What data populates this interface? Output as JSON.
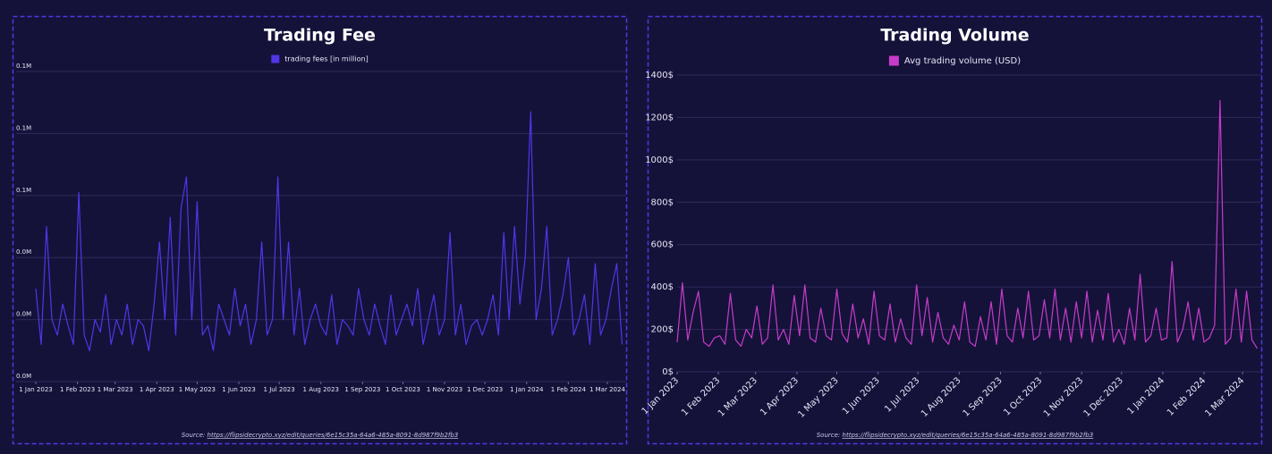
{
  "chart_data": [
    {
      "type": "line",
      "title": "Trading Fee",
      "x": [
        "2023-01-01",
        "2023-01-05",
        "2023-01-09",
        "2023-01-13",
        "2023-01-17",
        "2023-01-21",
        "2023-01-25",
        "2023-01-29",
        "2023-02-02",
        "2023-02-06",
        "2023-02-10",
        "2023-02-14",
        "2023-02-18",
        "2023-02-22",
        "2023-02-26",
        "2023-03-02",
        "2023-03-06",
        "2023-03-10",
        "2023-03-14",
        "2023-03-18",
        "2023-03-22",
        "2023-03-26",
        "2023-03-30",
        "2023-04-03",
        "2023-04-07",
        "2023-04-11",
        "2023-04-15",
        "2023-04-19",
        "2023-04-23",
        "2023-04-27",
        "2023-05-01",
        "2023-05-05",
        "2023-05-09",
        "2023-05-13",
        "2023-05-17",
        "2023-05-21",
        "2023-05-25",
        "2023-05-29",
        "2023-06-02",
        "2023-06-06",
        "2023-06-10",
        "2023-06-14",
        "2023-06-18",
        "2023-06-22",
        "2023-06-26",
        "2023-06-30",
        "2023-07-04",
        "2023-07-08",
        "2023-07-12",
        "2023-07-16",
        "2023-07-20",
        "2023-07-24",
        "2023-07-28",
        "2023-08-01",
        "2023-08-05",
        "2023-08-09",
        "2023-08-13",
        "2023-08-17",
        "2023-08-21",
        "2023-08-25",
        "2023-08-29",
        "2023-09-02",
        "2023-09-06",
        "2023-09-10",
        "2023-09-14",
        "2023-09-18",
        "2023-09-22",
        "2023-09-26",
        "2023-09-30",
        "2023-10-04",
        "2023-10-08",
        "2023-10-12",
        "2023-10-16",
        "2023-10-20",
        "2023-10-24",
        "2023-10-28",
        "2023-11-01",
        "2023-11-05",
        "2023-11-09",
        "2023-11-13",
        "2023-11-17",
        "2023-11-21",
        "2023-11-25",
        "2023-11-29",
        "2023-12-03",
        "2023-12-07",
        "2023-12-11",
        "2023-12-15",
        "2023-12-19",
        "2023-12-23",
        "2023-12-27",
        "2023-12-31",
        "2024-01-04",
        "2024-01-08",
        "2024-01-12",
        "2024-01-16",
        "2024-01-20",
        "2024-01-24",
        "2024-01-28",
        "2024-02-01",
        "2024-02-05",
        "2024-02-09",
        "2024-02-13",
        "2024-02-17",
        "2024-02-21",
        "2024-02-25",
        "2024-02-29",
        "2024-03-04",
        "2024-03-08",
        "2024-03-12"
      ],
      "series": [
        {
          "name": "trading fees [in million]",
          "color": "#5036e6",
          "values": [
            0.03,
            0.012,
            0.05,
            0.02,
            0.015,
            0.025,
            0.018,
            0.012,
            0.061,
            0.015,
            0.01,
            0.02,
            0.016,
            0.028,
            0.012,
            0.02,
            0.015,
            0.025,
            0.012,
            0.02,
            0.018,
            0.01,
            0.025,
            0.045,
            0.02,
            0.053,
            0.015,
            0.056,
            0.066,
            0.02,
            0.058,
            0.015,
            0.018,
            0.01,
            0.025,
            0.02,
            0.015,
            0.03,
            0.018,
            0.025,
            0.012,
            0.02,
            0.045,
            0.015,
            0.02,
            0.066,
            0.02,
            0.045,
            0.015,
            0.03,
            0.012,
            0.02,
            0.025,
            0.018,
            0.015,
            0.028,
            0.012,
            0.02,
            0.018,
            0.015,
            0.03,
            0.02,
            0.015,
            0.025,
            0.018,
            0.012,
            0.028,
            0.015,
            0.02,
            0.025,
            0.018,
            0.03,
            0.012,
            0.02,
            0.028,
            0.015,
            0.02,
            0.048,
            0.015,
            0.025,
            0.012,
            0.018,
            0.02,
            0.015,
            0.02,
            0.028,
            0.015,
            0.048,
            0.02,
            0.05,
            0.025,
            0.04,
            0.087,
            0.02,
            0.03,
            0.05,
            0.015,
            0.02,
            0.028,
            0.04,
            0.015,
            0.02,
            0.028,
            0.012,
            0.038,
            0.015,
            0.02,
            0.03,
            0.038,
            0.012
          ]
        }
      ],
      "xlim": [
        "2023-01-01",
        "2024-03-15"
      ],
      "xticks": [
        {
          "value": "2023-01-01",
          "label": "1 Jan 2023"
        },
        {
          "value": "2023-02-01",
          "label": "1 Feb 2023"
        },
        {
          "value": "2023-03-01",
          "label": "1 Mar 2023"
        },
        {
          "value": "2023-04-01",
          "label": "1 Apr 2023"
        },
        {
          "value": "2023-05-01",
          "label": "1 May 2023"
        },
        {
          "value": "2023-06-01",
          "label": "1 Jun 2023"
        },
        {
          "value": "2023-07-01",
          "label": "1 Jul 2023"
        },
        {
          "value": "2023-08-01",
          "label": "1 Aug 2023"
        },
        {
          "value": "2023-09-01",
          "label": "1 Sep 2023"
        },
        {
          "value": "2023-10-01",
          "label": "1 Oct 2023"
        },
        {
          "value": "2023-11-01",
          "label": "1 Nov 2023"
        },
        {
          "value": "2023-12-01",
          "label": "1 Dec 2023"
        },
        {
          "value": "2024-01-01",
          "label": "1 Jan 2024"
        },
        {
          "value": "2024-02-01",
          "label": "1 Feb 2024"
        },
        {
          "value": "2024-03-01",
          "label": "1 Mar 2024"
        }
      ],
      "ylim": [
        0,
        0.1
      ],
      "yticks": [
        {
          "value": 0,
          "label": "0.0M"
        },
        {
          "value": 0.02,
          "label": "0.0M"
        },
        {
          "value": 0.04,
          "label": "0.0M"
        },
        {
          "value": 0.06,
          "label": "0.1M"
        },
        {
          "value": 0.08,
          "label": "0.1M"
        },
        {
          "value": 0.1,
          "label": "0.1M"
        }
      ],
      "grid": true,
      "xtick_rotation": 0,
      "source": {
        "label": "Source:",
        "url": "https://flipsidecrypto.xyz/edit/queries/6e15c35a-64a6-485a-8091-8d987f9b2fb3"
      }
    },
    {
      "type": "line",
      "title": "Trading Volume",
      "x": [
        "2023-01-01",
        "2023-01-05",
        "2023-01-09",
        "2023-01-13",
        "2023-01-17",
        "2023-01-21",
        "2023-01-25",
        "2023-01-29",
        "2023-02-02",
        "2023-02-06",
        "2023-02-10",
        "2023-02-14",
        "2023-02-18",
        "2023-02-22",
        "2023-02-26",
        "2023-03-02",
        "2023-03-06",
        "2023-03-10",
        "2023-03-14",
        "2023-03-18",
        "2023-03-22",
        "2023-03-26",
        "2023-03-30",
        "2023-04-03",
        "2023-04-07",
        "2023-04-11",
        "2023-04-15",
        "2023-04-19",
        "2023-04-23",
        "2023-04-27",
        "2023-05-01",
        "2023-05-05",
        "2023-05-09",
        "2023-05-13",
        "2023-05-17",
        "2023-05-21",
        "2023-05-25",
        "2023-05-29",
        "2023-06-02",
        "2023-06-06",
        "2023-06-10",
        "2023-06-14",
        "2023-06-18",
        "2023-06-22",
        "2023-06-26",
        "2023-06-30",
        "2023-07-04",
        "2023-07-08",
        "2023-07-12",
        "2023-07-16",
        "2023-07-20",
        "2023-07-24",
        "2023-07-28",
        "2023-08-01",
        "2023-08-05",
        "2023-08-09",
        "2023-08-13",
        "2023-08-17",
        "2023-08-21",
        "2023-08-25",
        "2023-08-29",
        "2023-09-02",
        "2023-09-06",
        "2023-09-10",
        "2023-09-14",
        "2023-09-18",
        "2023-09-22",
        "2023-09-26",
        "2023-09-30",
        "2023-10-04",
        "2023-10-08",
        "2023-10-12",
        "2023-10-16",
        "2023-10-20",
        "2023-10-24",
        "2023-10-28",
        "2023-11-01",
        "2023-11-05",
        "2023-11-09",
        "2023-11-13",
        "2023-11-17",
        "2023-11-21",
        "2023-11-25",
        "2023-11-29",
        "2023-12-03",
        "2023-12-07",
        "2023-12-11",
        "2023-12-15",
        "2023-12-19",
        "2023-12-23",
        "2023-12-27",
        "2023-12-31",
        "2024-01-04",
        "2024-01-08",
        "2024-01-12",
        "2024-01-16",
        "2024-01-20",
        "2024-01-24",
        "2024-01-28",
        "2024-02-01",
        "2024-02-05",
        "2024-02-09",
        "2024-02-13",
        "2024-02-17",
        "2024-02-21",
        "2024-02-25",
        "2024-02-29",
        "2024-03-04",
        "2024-03-08",
        "2024-03-12"
      ],
      "series": [
        {
          "name": "Avg trading volume (USD)",
          "color": "#c63cc8",
          "values": [
            140,
            420,
            150,
            280,
            380,
            140,
            120,
            160,
            170,
            130,
            370,
            150,
            120,
            200,
            160,
            310,
            130,
            160,
            410,
            150,
            200,
            130,
            360,
            170,
            410,
            160,
            140,
            300,
            170,
            150,
            390,
            180,
            140,
            320,
            160,
            250,
            130,
            380,
            170,
            150,
            320,
            140,
            250,
            160,
            130,
            410,
            170,
            350,
            140,
            280,
            160,
            130,
            220,
            150,
            330,
            140,
            120,
            260,
            150,
            330,
            130,
            390,
            170,
            140,
            300,
            160,
            380,
            150,
            170,
            340,
            160,
            390,
            150,
            300,
            140,
            330,
            160,
            380,
            140,
            290,
            150,
            370,
            140,
            200,
            130,
            300,
            150,
            460,
            140,
            170,
            300,
            150,
            160,
            520,
            140,
            200,
            330,
            150,
            300,
            140,
            160,
            220,
            1280,
            130,
            160,
            390,
            140,
            380,
            150,
            110
          ]
        }
      ],
      "xlim": [
        "2023-01-01",
        "2024-03-15"
      ],
      "xticks": [
        {
          "value": "2023-01-01",
          "label": "1 Jan 2023"
        },
        {
          "value": "2023-02-01",
          "label": "1 Feb 2023"
        },
        {
          "value": "2023-03-01",
          "label": "1 Mar 2023"
        },
        {
          "value": "2023-04-01",
          "label": "1 Apr 2023"
        },
        {
          "value": "2023-05-01",
          "label": "1 May 2023"
        },
        {
          "value": "2023-06-01",
          "label": "1 Jun 2023"
        },
        {
          "value": "2023-07-01",
          "label": "1 Jul 2023"
        },
        {
          "value": "2023-08-01",
          "label": "1 Aug 2023"
        },
        {
          "value": "2023-09-01",
          "label": "1 Sep 2023"
        },
        {
          "value": "2023-10-01",
          "label": "1 Oct 2023"
        },
        {
          "value": "2023-11-01",
          "label": "1 Nov 2023"
        },
        {
          "value": "2023-12-01",
          "label": "1 Dec 2023"
        },
        {
          "value": "2024-01-01",
          "label": "1 Jan 2024"
        },
        {
          "value": "2024-02-01",
          "label": "1 Feb 2024"
        },
        {
          "value": "2024-03-01",
          "label": "1 Mar 2024"
        }
      ],
      "ylim": [
        0,
        1400
      ],
      "yticks": [
        {
          "value": 0,
          "label": "0$"
        },
        {
          "value": 200,
          "label": "200$"
        },
        {
          "value": 400,
          "label": "400$"
        },
        {
          "value": 600,
          "label": "600$"
        },
        {
          "value": 800,
          "label": "800$"
        },
        {
          "value": 1000,
          "label": "1000$"
        },
        {
          "value": 1200,
          "label": "1200$"
        },
        {
          "value": 1400,
          "label": "1400$"
        }
      ],
      "grid": true,
      "xtick_rotation": -45,
      "source": {
        "label": "Source:",
        "url": "https://flipsidecrypto.xyz/edit/queries/6e15c35a-64a6-485a-8091-8d987f9b2fb3"
      }
    }
  ]
}
